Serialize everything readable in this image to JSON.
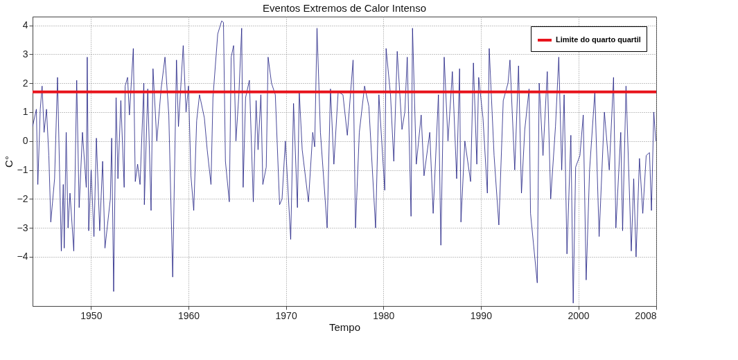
{
  "chart_data": {
    "type": "line",
    "title": "Eventos Extremos de Calor Intenso",
    "xlabel": "Tempo",
    "ylabel": "C°",
    "xlim": [
      1944,
      2008
    ],
    "xticks": [
      1950,
      1960,
      1970,
      1980,
      1990,
      2000,
      2008
    ],
    "ylim": [
      -5.7,
      4.3
    ],
    "yticks": [
      -4,
      -3,
      -2,
      -1,
      0,
      1,
      2,
      3,
      4
    ],
    "grid": true,
    "legend": "top right",
    "marker": "none",
    "line_style": "solid",
    "ref_lines": [
      {
        "axis": "y",
        "value": 1.7,
        "label": "Limite do quarto quartil",
        "color": "#e8141c"
      }
    ],
    "series": [
      {
        "color": "#1a1a80",
        "x": [
          1944.0,
          1944.39,
          1944.54,
          1944.79,
          1944.98,
          1945.18,
          1945.43,
          1945.67,
          1945.87,
          1946.26,
          1946.56,
          1946.95,
          1947.15,
          1947.25,
          1947.45,
          1947.64,
          1947.84,
          1948.23,
          1948.53,
          1948.78,
          1949.12,
          1949.51,
          1949.61,
          1949.76,
          1950.01,
          1950.3,
          1950.55,
          1950.89,
          1951.19,
          1951.43,
          1951.98,
          1952.12,
          1952.32,
          1952.57,
          1952.76,
          1953.06,
          1953.4,
          1953.5,
          1953.75,
          1953.94,
          1954.34,
          1954.54,
          1954.78,
          1955.03,
          1955.42,
          1955.47,
          1955.82,
          1956.16,
          1956.36,
          1956.75,
          1957.19,
          1957.59,
          1957.98,
          1958.38,
          1958.77,
          1958.97,
          1959.46,
          1959.75,
          1960.0,
          1960.25,
          1960.54,
          1960.84,
          1961.13,
          1961.63,
          1961.92,
          1962.31,
          1962.51,
          1963.0,
          1963.4,
          1963.59,
          1963.79,
          1964.19,
          1964.38,
          1964.63,
          1964.87,
          1965.17,
          1965.46,
          1965.61,
          1965.86,
          1966.25,
          1966.65,
          1966.94,
          1967.14,
          1967.43,
          1967.63,
          1967.98,
          1968.17,
          1968.52,
          1968.91,
          1969.35,
          1969.6,
          1969.94,
          1970.49,
          1970.78,
          1971.18,
          1971.37,
          1971.67,
          1972.31,
          1972.75,
          1972.95,
          1973.19,
          1973.54,
          1974.23,
          1974.57,
          1974.92,
          1975.36,
          1975.85,
          1976.3,
          1976.89,
          1977.14,
          1977.53,
          1978.07,
          1978.51,
          1979.2,
          1979.54,
          1980.14,
          1980.28,
          1980.73,
          1981.07,
          1981.42,
          1981.91,
          1982.2,
          1982.45,
          1982.84,
          1982.99,
          1983.38,
          1983.88,
          1984.17,
          1984.76,
          1985.11,
          1985.65,
          1985.9,
          1986.24,
          1986.63,
          1987.08,
          1987.52,
          1987.82,
          1987.96,
          1988.36,
          1988.95,
          1989.24,
          1989.59,
          1989.78,
          1990.22,
          1990.67,
          1990.86,
          1991.36,
          1991.85,
          1992.3,
          1992.79,
          1992.99,
          1993.48,
          1993.87,
          1994.17,
          1994.51,
          1994.95,
          1995.1,
          1995.79,
          1995.99,
          1996.38,
          1996.82,
          1997.17,
          1997.66,
          1998.0,
          1998.3,
          1998.55,
          1998.84,
          1999.24,
          1999.48,
          1999.73,
          2000.17,
          2000.51,
          2000.81,
          2001.16,
          2001.7,
          2002.14,
          2002.68,
          2003.18,
          2003.62,
          2003.86,
          2004.36,
          2004.55,
          2004.9,
          2005.44,
          2005.69,
          2005.93,
          2006.28,
          2006.62,
          2006.97,
          2007.31,
          2007.51,
          2007.75,
          2007.95
        ],
        "values": [
          0.5,
          1.1,
          -1.5,
          1.1,
          1.9,
          0.3,
          1.1,
          -0.5,
          -2.8,
          -1.3,
          2.2,
          -3.8,
          -1.5,
          -3.7,
          0.3,
          -3.0,
          -1.8,
          -3.8,
          2.1,
          -2.3,
          0.3,
          -1.6,
          2.9,
          -3.1,
          -1.0,
          -3.3,
          0.1,
          -3.1,
          -0.7,
          -3.7,
          -2.0,
          0.1,
          -5.2,
          1.5,
          -1.3,
          1.4,
          -1.6,
          1.9,
          2.2,
          0.9,
          3.2,
          -1.4,
          -0.8,
          -1.5,
          2.0,
          -2.2,
          1.8,
          -2.4,
          2.5,
          0.0,
          1.8,
          2.9,
          0.9,
          -4.7,
          2.8,
          0.5,
          3.3,
          1.0,
          1.9,
          -1.2,
          -2.4,
          0.7,
          1.6,
          0.8,
          -0.3,
          -1.5,
          1.5,
          3.7,
          4.15,
          4.1,
          -0.7,
          -2.1,
          2.9,
          3.3,
          0.0,
          1.6,
          3.9,
          -1.6,
          1.5,
          2.1,
          -2.1,
          1.4,
          -0.3,
          1.6,
          -1.5,
          -0.9,
          2.9,
          2.0,
          1.6,
          -2.2,
          -2.0,
          0.0,
          -3.4,
          1.3,
          -2.3,
          1.7,
          -0.3,
          -2.1,
          0.3,
          -0.2,
          3.9,
          0.3,
          -3.0,
          1.8,
          -0.8,
          1.7,
          1.6,
          0.2,
          2.8,
          -3.0,
          0.3,
          1.9,
          1.2,
          -3.0,
          1.6,
          -1.7,
          3.2,
          1.6,
          -0.7,
          3.1,
          0.4,
          1.0,
          2.9,
          -2.6,
          3.9,
          -0.8,
          0.9,
          -1.2,
          0.3,
          -2.5,
          1.6,
          -3.6,
          2.9,
          0.0,
          2.4,
          -1.3,
          2.5,
          -2.8,
          0.0,
          -1.4,
          2.7,
          -0.8,
          2.2,
          0.8,
          -1.8,
          3.2,
          -0.5,
          -2.9,
          1.4,
          2.0,
          2.8,
          -1.0,
          2.6,
          -1.8,
          0.4,
          1.8,
          -2.5,
          -4.9,
          2.0,
          -0.5,
          2.4,
          -2.0,
          0.5,
          2.9,
          -1.0,
          1.6,
          -3.9,
          0.2,
          -5.6,
          -0.9,
          -0.5,
          0.9,
          -4.8,
          -1.0,
          1.7,
          -3.3,
          1.0,
          -1.0,
          2.2,
          -3.0,
          0.3,
          -3.1,
          1.9,
          -3.8,
          -1.3,
          -4.0,
          -0.6,
          -2.5,
          -0.5,
          -0.4,
          -2.4,
          1.0,
          0.0
        ]
      }
    ]
  }
}
